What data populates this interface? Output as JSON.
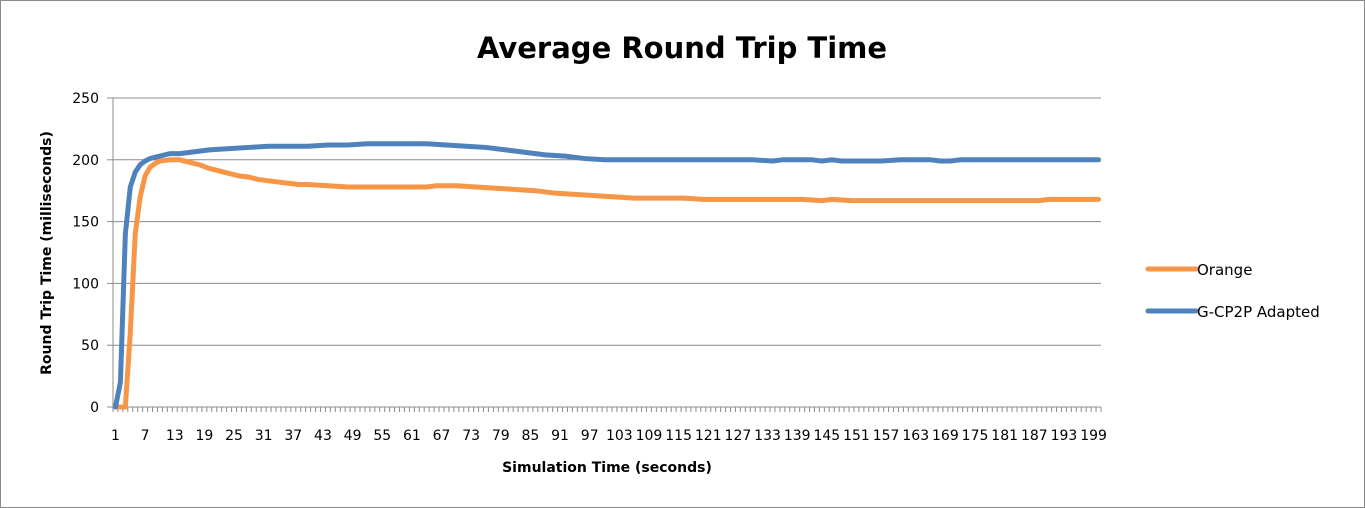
{
  "chart_data": {
    "type": "line",
    "title": "Average Round Trip Time",
    "xlabel": "Simulation Time (seconds)",
    "ylabel": "Round Trip Time (milliseconds)",
    "x_range": [
      1,
      200
    ],
    "ylim": [
      0,
      250
    ],
    "y_ticks": [
      0,
      50,
      100,
      150,
      200,
      250
    ],
    "x_tick_labels": [
      "1",
      "7",
      "13",
      "19",
      "25",
      "31",
      "37",
      "43",
      "49",
      "55",
      "61",
      "67",
      "73",
      "79",
      "85",
      "91",
      "97",
      "103",
      "109",
      "115",
      "121",
      "127",
      "133",
      "139",
      "145",
      "151",
      "157",
      "163",
      "169",
      "175",
      "181",
      "187",
      "193",
      "199"
    ],
    "grid": "horizontal",
    "legend_position": "right",
    "series": [
      {
        "name": "Orange",
        "color": "#f79646",
        "points": [
          [
            1,
            0
          ],
          [
            2,
            0
          ],
          [
            3,
            0
          ],
          [
            4,
            60
          ],
          [
            5,
            140
          ],
          [
            6,
            170
          ],
          [
            7,
            187
          ],
          [
            8,
            194
          ],
          [
            9,
            197
          ],
          [
            10,
            199
          ],
          [
            12,
            200
          ],
          [
            14,
            200
          ],
          [
            16,
            198
          ],
          [
            18,
            196
          ],
          [
            20,
            193
          ],
          [
            22,
            191
          ],
          [
            24,
            189
          ],
          [
            26,
            187
          ],
          [
            28,
            186
          ],
          [
            30,
            184
          ],
          [
            32,
            183
          ],
          [
            34,
            182
          ],
          [
            36,
            181
          ],
          [
            38,
            180
          ],
          [
            40,
            180
          ],
          [
            44,
            179
          ],
          [
            48,
            178
          ],
          [
            52,
            178
          ],
          [
            56,
            178
          ],
          [
            60,
            178
          ],
          [
            64,
            178
          ],
          [
            66,
            179
          ],
          [
            70,
            179
          ],
          [
            74,
            178
          ],
          [
            78,
            177
          ],
          [
            82,
            176
          ],
          [
            86,
            175
          ],
          [
            90,
            173
          ],
          [
            94,
            172
          ],
          [
            98,
            171
          ],
          [
            102,
            170
          ],
          [
            106,
            169
          ],
          [
            110,
            169
          ],
          [
            116,
            169
          ],
          [
            120,
            168
          ],
          [
            130,
            168
          ],
          [
            140,
            168
          ],
          [
            144,
            167
          ],
          [
            146,
            168
          ],
          [
            150,
            167
          ],
          [
            160,
            167
          ],
          [
            170,
            167
          ],
          [
            180,
            167
          ],
          [
            188,
            167
          ],
          [
            190,
            168
          ],
          [
            200,
            168
          ]
        ]
      },
      {
        "name": "G-CP2P Adapted",
        "color": "#4f81bd",
        "points": [
          [
            1,
            0
          ],
          [
            2,
            20
          ],
          [
            3,
            140
          ],
          [
            4,
            178
          ],
          [
            5,
            190
          ],
          [
            6,
            196
          ],
          [
            7,
            199
          ],
          [
            8,
            201
          ],
          [
            10,
            203
          ],
          [
            12,
            205
          ],
          [
            14,
            205
          ],
          [
            16,
            206
          ],
          [
            18,
            207
          ],
          [
            20,
            208
          ],
          [
            24,
            209
          ],
          [
            28,
            210
          ],
          [
            32,
            211
          ],
          [
            40,
            211
          ],
          [
            44,
            212
          ],
          [
            48,
            212
          ],
          [
            52,
            213
          ],
          [
            56,
            213
          ],
          [
            62,
            213
          ],
          [
            64,
            213
          ],
          [
            68,
            212
          ],
          [
            72,
            211
          ],
          [
            76,
            210
          ],
          [
            80,
            208
          ],
          [
            84,
            206
          ],
          [
            88,
            204
          ],
          [
            92,
            203
          ],
          [
            96,
            201
          ],
          [
            100,
            200
          ],
          [
            110,
            200
          ],
          [
            120,
            200
          ],
          [
            130,
            200
          ],
          [
            134,
            199
          ],
          [
            136,
            200
          ],
          [
            142,
            200
          ],
          [
            144,
            199
          ],
          [
            146,
            200
          ],
          [
            148,
            199
          ],
          [
            156,
            199
          ],
          [
            160,
            200
          ],
          [
            166,
            200
          ],
          [
            168,
            199
          ],
          [
            170,
            199
          ],
          [
            172,
            200
          ],
          [
            180,
            200
          ],
          [
            190,
            200
          ],
          [
            200,
            200
          ]
        ]
      }
    ]
  }
}
